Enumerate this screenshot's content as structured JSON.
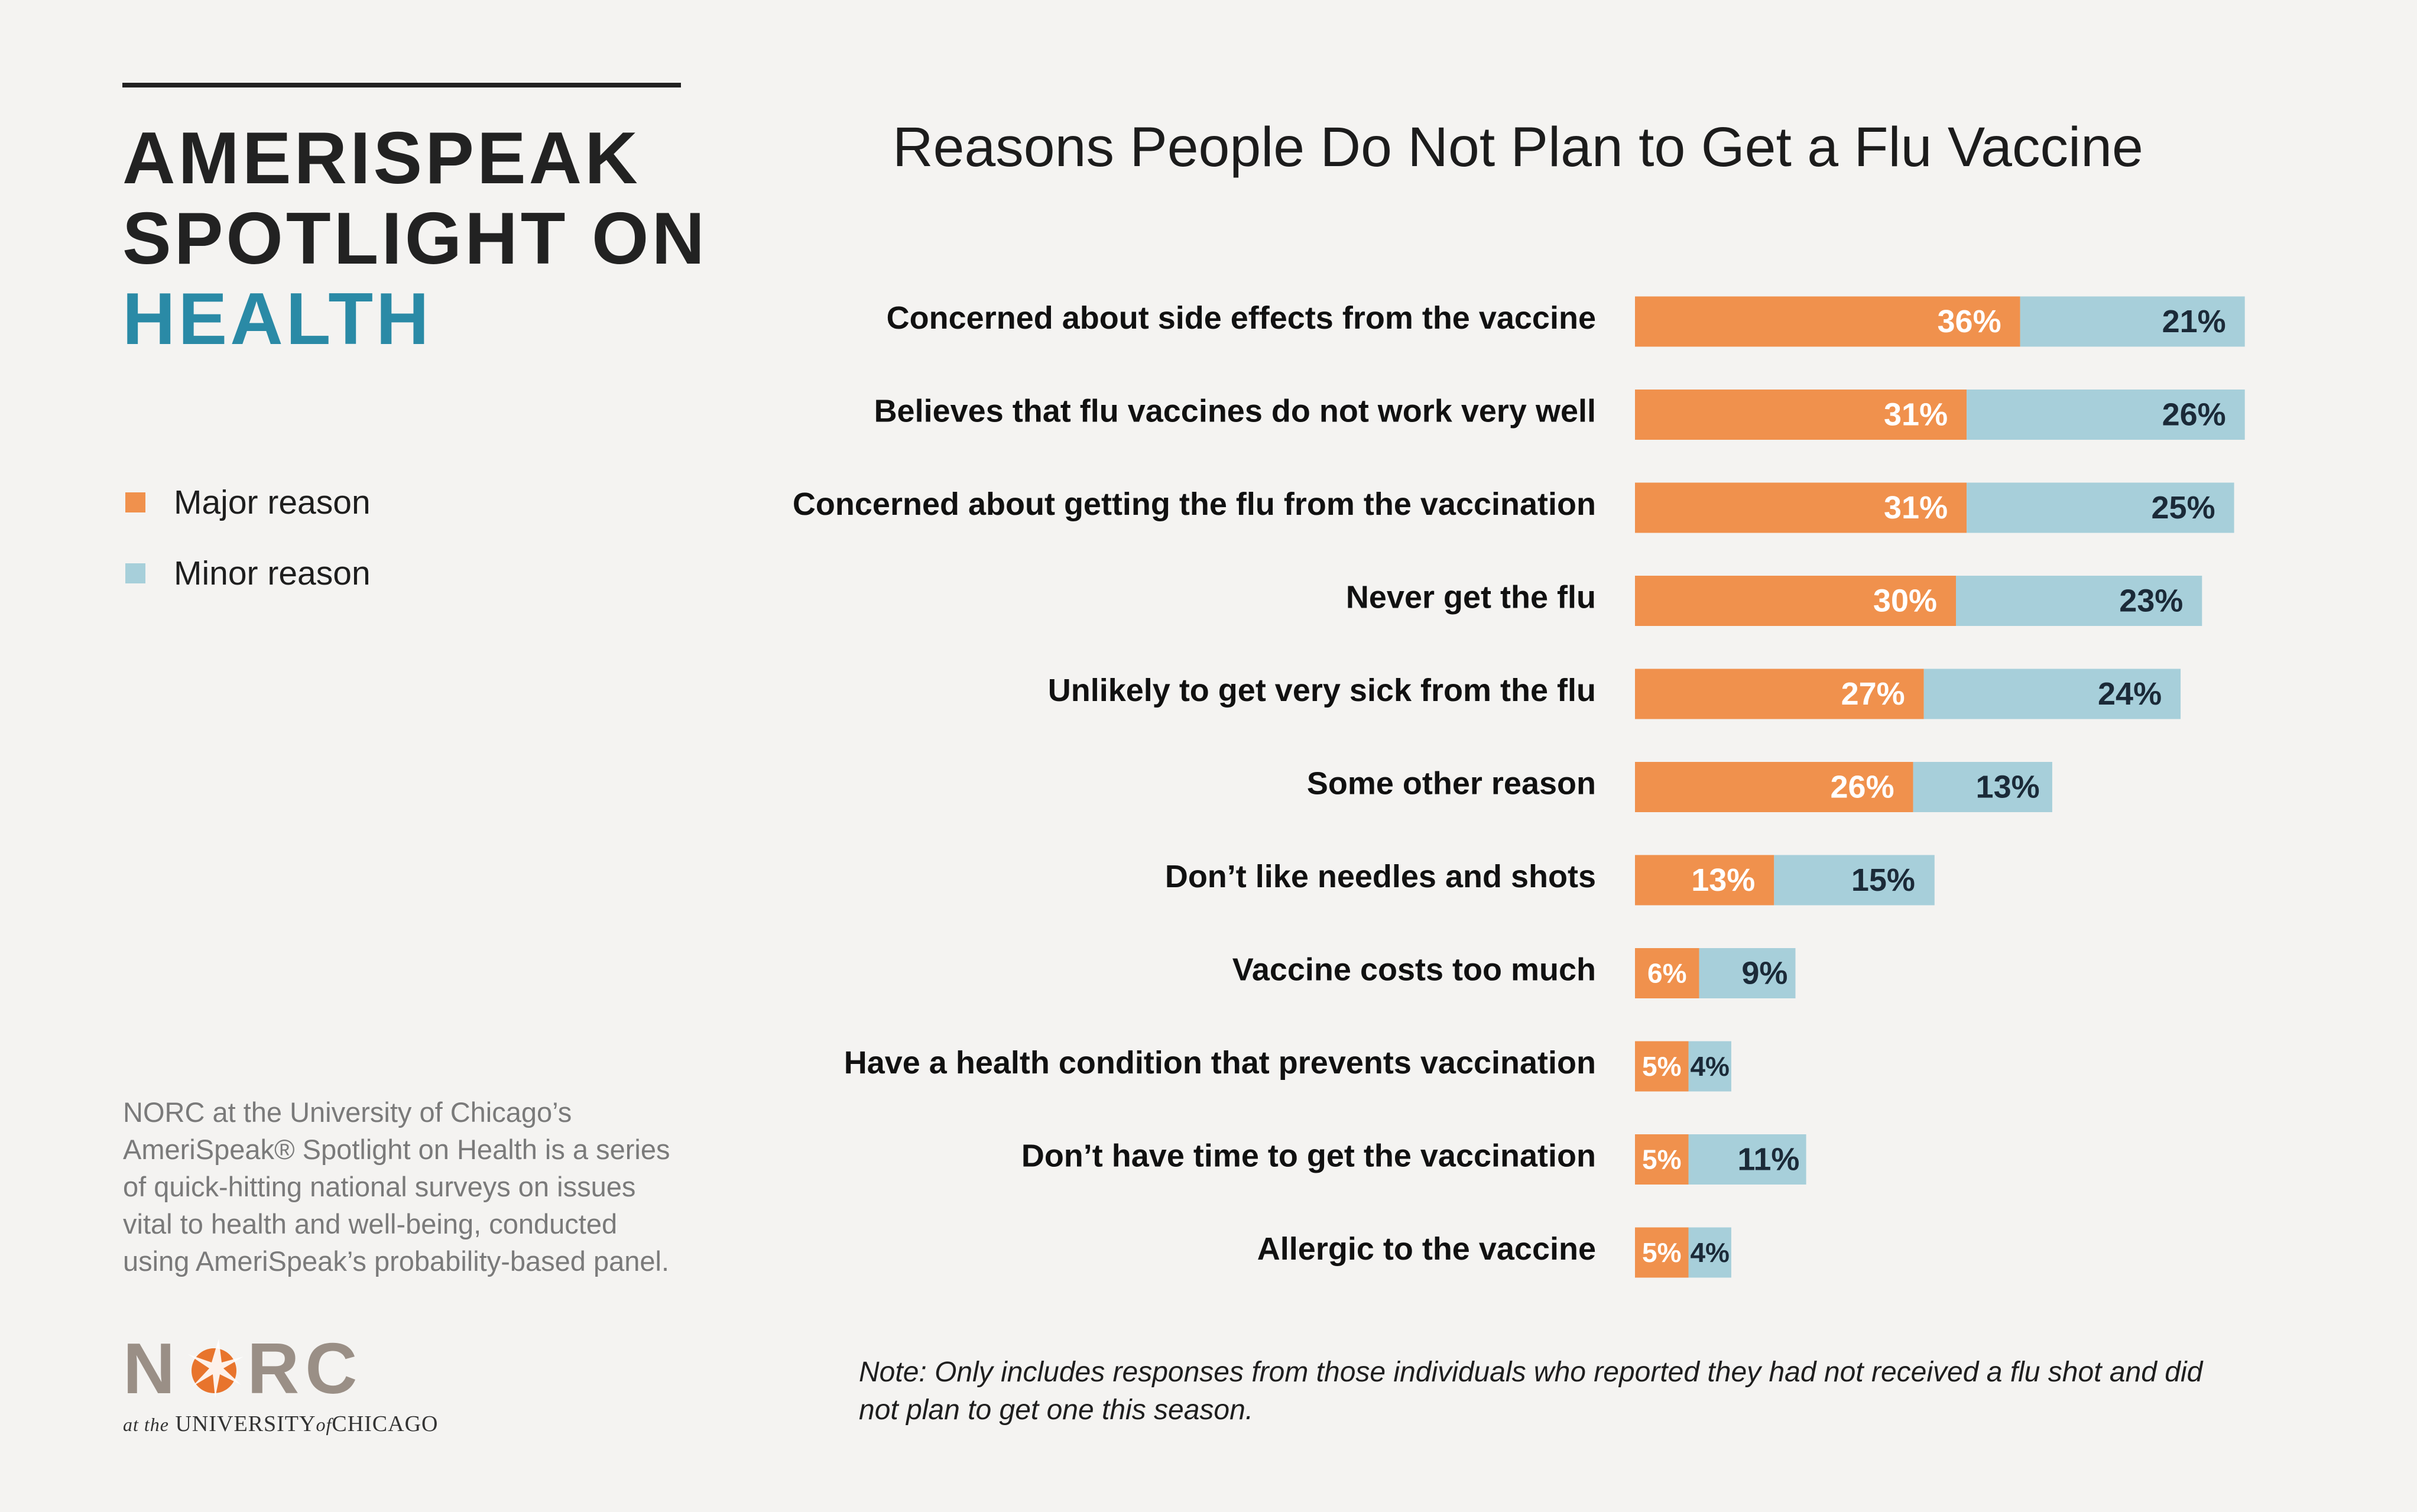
{
  "brand": {
    "line1": "AMERISPEAK",
    "line2": "SPOTLIGHT ON",
    "line3": "HEALTH"
  },
  "legend": [
    {
      "label": "Major reason",
      "color": "#f0914d"
    },
    {
      "label": "Minor reason",
      "color": "#a7cfda"
    }
  ],
  "about": {
    "line1": "NORC at the University of Chicago’s",
    "line2": "AmeriSpeak® Spotlight on Health is a series",
    "line3": "of quick-hitting national surveys on issues",
    "line4": "vital to health and well-being, conducted",
    "line5": "using AmeriSpeak’s probability-based panel."
  },
  "logo": {
    "word_left": "N",
    "word_right": "RC",
    "sub_pre": "at the",
    "sub_uni": "UNIVERSITY",
    "sub_of": "of",
    "sub_city": "CHICAGO"
  },
  "colors": {
    "major": "#f0914d",
    "minor": "#a7cfda",
    "major_label": "#ffffff",
    "minor_label": "#1b2a38"
  },
  "chart_data": {
    "type": "bar",
    "orientation": "horizontal",
    "stacked": true,
    "title": "Reasons People Do Not Plan to Get a Flu Vaccine",
    "categories": [
      "Concerned about side effects from the vaccine",
      "Believes that flu vaccines do not work very well",
      "Concerned about getting the flu from the vaccination",
      "Never get the flu",
      "Unlikely to get very sick from the flu",
      "Some other reason",
      "Don’t like needles and shots",
      "Vaccine costs too much",
      "Have a health condition that prevents vaccination",
      "Don’t have time to get the vaccination",
      "Allergic to the vaccine"
    ],
    "series": [
      {
        "name": "Major reason",
        "values": [
          36,
          31,
          31,
          30,
          27,
          26,
          13,
          6,
          5,
          5,
          5
        ],
        "labels": [
          "36%",
          "31%",
          "31%",
          "30%",
          "27%",
          "26%",
          "13%",
          "6%",
          "5%",
          "5%",
          "5%"
        ]
      },
      {
        "name": "Minor reason",
        "values": [
          21,
          26,
          25,
          23,
          24,
          13,
          15,
          9,
          4,
          11,
          4
        ],
        "labels": [
          "21%",
          "26%",
          "25%",
          "23%",
          "24%",
          "13%",
          "15%",
          "9%",
          "4%",
          "11%",
          "4%"
        ]
      }
    ],
    "xlabel": "",
    "ylabel": "",
    "legend_position": "left"
  },
  "note": {
    "line1": "Note: Only includes responses from those individuals who reported they had not received a flu shot and did",
    "line2": "not plan to get one this season."
  }
}
